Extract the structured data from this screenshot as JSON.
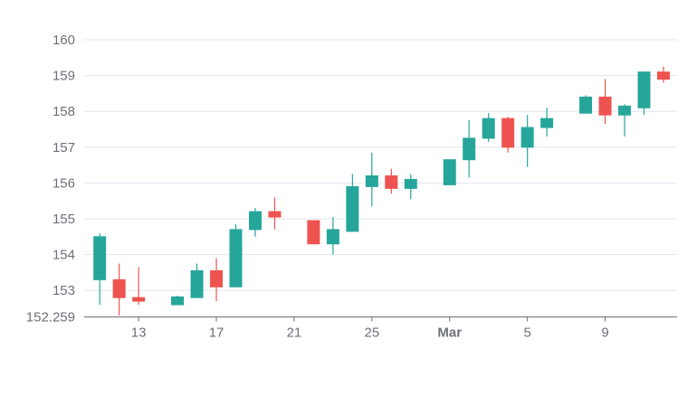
{
  "chart_data": {
    "type": "candlestick",
    "title": "",
    "xlabel": "",
    "ylabel": "",
    "ylim": [
      152.259,
      160
    ],
    "grid": true,
    "legend": "none",
    "colors": {
      "up": "#26a69a",
      "down": "#ef5350",
      "grid": "#e0e6f1",
      "axis": "#6e7079",
      "wick_up": "#26a69a",
      "wick_down": "#ef5350"
    },
    "y_ticks": [
      {
        "value": 160,
        "label": "160"
      },
      {
        "value": 159,
        "label": "159"
      },
      {
        "value": 158,
        "label": "158"
      },
      {
        "value": 157,
        "label": "157"
      },
      {
        "value": 156,
        "label": "156"
      },
      {
        "value": 155,
        "label": "155"
      },
      {
        "value": 154,
        "label": "154"
      },
      {
        "value": 153,
        "label": "153"
      },
      {
        "value": 152.259,
        "label": "152.259"
      }
    ],
    "x_ticks": [
      {
        "day": 13,
        "label": "13",
        "bold": false
      },
      {
        "day": 17,
        "label": "17",
        "bold": false
      },
      {
        "day": 21,
        "label": "21",
        "bold": false
      },
      {
        "day": 25,
        "label": "25",
        "bold": false
      },
      {
        "day": 29,
        "label": "Mar",
        "bold": true
      },
      {
        "day": 33,
        "label": "5",
        "bold": false
      },
      {
        "day": 37,
        "label": "9",
        "bold": false
      }
    ],
    "x_range": [
      10.2,
      40.7
    ],
    "candles": [
      {
        "day": 11,
        "open": 153.3,
        "high": 154.6,
        "low": 152.6,
        "close": 154.5
      },
      {
        "day": 12,
        "open": 153.3,
        "high": 153.75,
        "low": 152.3,
        "close": 152.8
      },
      {
        "day": 13,
        "open": 152.8,
        "high": 153.65,
        "low": 152.6,
        "close": 152.7
      },
      {
        "day": 15,
        "open": 152.6,
        "high": 152.85,
        "low": 152.6,
        "close": 152.82
      },
      {
        "day": 16,
        "open": 152.8,
        "high": 153.75,
        "low": 152.8,
        "close": 153.55
      },
      {
        "day": 17,
        "open": 153.55,
        "high": 153.9,
        "low": 152.7,
        "close": 153.1
      },
      {
        "day": 18,
        "open": 153.1,
        "high": 154.85,
        "low": 153.1,
        "close": 154.7
      },
      {
        "day": 19,
        "open": 154.7,
        "high": 155.3,
        "low": 154.5,
        "close": 155.2
      },
      {
        "day": 20,
        "open": 155.2,
        "high": 155.6,
        "low": 154.7,
        "close": 155.05
      },
      {
        "day": 22,
        "open": 154.95,
        "high": 154.95,
        "low": 154.3,
        "close": 154.3
      },
      {
        "day": 23,
        "open": 154.3,
        "high": 155.05,
        "low": 154.0,
        "close": 154.7
      },
      {
        "day": 24,
        "open": 154.65,
        "high": 156.25,
        "low": 154.65,
        "close": 155.9
      },
      {
        "day": 25,
        "open": 155.9,
        "high": 156.85,
        "low": 155.35,
        "close": 156.2
      },
      {
        "day": 26,
        "open": 156.2,
        "high": 156.4,
        "low": 155.7,
        "close": 155.85
      },
      {
        "day": 27,
        "open": 155.85,
        "high": 156.25,
        "low": 155.55,
        "close": 156.1
      },
      {
        "day": 29,
        "open": 155.95,
        "high": 156.65,
        "low": 155.95,
        "close": 156.65
      },
      {
        "day": 30,
        "open": 156.65,
        "high": 157.75,
        "low": 156.15,
        "close": 157.25
      },
      {
        "day": 31,
        "open": 157.25,
        "high": 157.95,
        "low": 157.15,
        "close": 157.8
      },
      {
        "day": 32,
        "open": 157.8,
        "high": 157.85,
        "low": 156.85,
        "close": 157.0
      },
      {
        "day": 33,
        "open": 157.0,
        "high": 157.9,
        "low": 156.45,
        "close": 157.55
      },
      {
        "day": 34,
        "open": 157.55,
        "high": 158.1,
        "low": 157.3,
        "close": 157.8
      },
      {
        "day": 36,
        "open": 157.95,
        "high": 158.45,
        "low": 157.95,
        "close": 158.4
      },
      {
        "day": 37,
        "open": 158.4,
        "high": 158.9,
        "low": 157.65,
        "close": 157.9
      },
      {
        "day": 38,
        "open": 157.9,
        "high": 158.2,
        "low": 157.3,
        "close": 158.15
      },
      {
        "day": 39,
        "open": 158.1,
        "high": 159.1,
        "low": 157.9,
        "close": 159.1
      },
      {
        "day": 40,
        "open": 159.1,
        "high": 159.25,
        "low": 158.8,
        "close": 158.9
      }
    ]
  }
}
